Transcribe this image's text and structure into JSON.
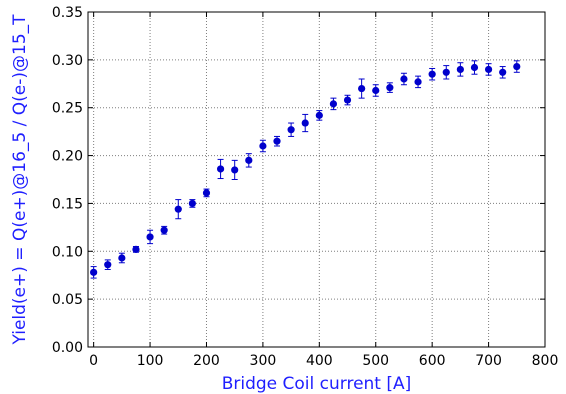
{
  "chart_data": {
    "type": "scatter",
    "title": "",
    "xlabel": "Bridge Coil current [A]",
    "ylabel": "Yield(e+) = Q(e+)@16_5 / Q(e-)@15_T",
    "xlim": [
      -10,
      800
    ],
    "ylim": [
      0,
      0.35
    ],
    "grid": true,
    "legend": "none",
    "x_ticks": [
      "0",
      "100",
      "200",
      "300",
      "400",
      "500",
      "600",
      "700",
      "800"
    ],
    "y_ticks": [
      "0.00",
      "0.05",
      "0.10",
      "0.15",
      "0.20",
      "0.25",
      "0.30",
      "0.35"
    ],
    "x_tick_values": [
      0,
      100,
      200,
      300,
      400,
      500,
      600,
      700,
      800
    ],
    "y_tick_values": [
      0,
      0.05,
      0.1,
      0.15,
      0.2,
      0.25,
      0.3,
      0.35
    ],
    "colors": {
      "marker": "#0000cc",
      "axis_label": "#1f1fff",
      "grid": "#7f7f7f"
    },
    "series": [
      {
        "x": [
          0,
          25,
          50,
          75,
          100,
          125,
          150,
          175,
          200,
          225,
          250,
          275,
          300,
          325,
          350,
          375,
          400,
          425,
          450,
          475,
          500,
          525,
          550,
          575,
          600,
          625,
          650,
          675,
          700,
          725,
          750
        ],
        "y": [
          0.078,
          0.086,
          0.093,
          0.102,
          0.115,
          0.122,
          0.144,
          0.15,
          0.161,
          0.186,
          0.185,
          0.195,
          0.21,
          0.215,
          0.227,
          0.234,
          0.242,
          0.254,
          0.258,
          0.27,
          0.268,
          0.271,
          0.28,
          0.277,
          0.285,
          0.287,
          0.29,
          0.292,
          0.29,
          0.287,
          0.293
        ],
        "err": [
          0.006,
          0.005,
          0.005,
          0.003,
          0.007,
          0.004,
          0.01,
          0.004,
          0.004,
          0.01,
          0.01,
          0.007,
          0.006,
          0.005,
          0.007,
          0.009,
          0.005,
          0.006,
          0.005,
          0.01,
          0.006,
          0.005,
          0.006,
          0.006,
          0.006,
          0.007,
          0.007,
          0.007,
          0.006,
          0.006,
          0.006
        ]
      }
    ]
  }
}
